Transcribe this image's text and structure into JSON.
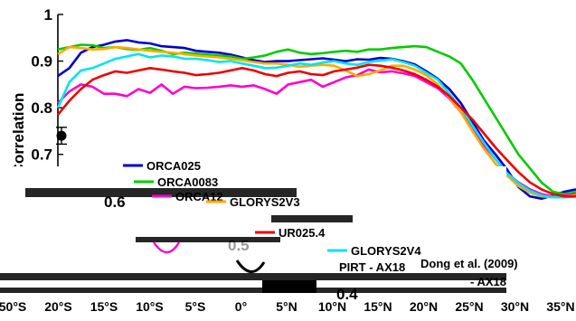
{
  "chart_data": {
    "type": "line",
    "ylabel": "Correlation",
    "ylim": [
      0.62,
      1.0
    ],
    "yticks": [
      {
        "value": 1.0,
        "label": "1"
      },
      {
        "value": 0.9,
        "label": "0.9"
      },
      {
        "value": 0.8,
        "label": "0.8"
      },
      {
        "value": 0.7,
        "label": "0.7"
      }
    ],
    "extra_tick_labels": [
      "0.6",
      "0.5",
      "0.4"
    ],
    "xtick_labels": [
      "50°S",
      "20°S",
      "15°S",
      "10°S",
      "5°S",
      "0°",
      "5°N",
      "10°N",
      "15°N",
      "20°N",
      "25°N",
      "30°N",
      "35°N"
    ],
    "x": [
      -56.0,
      -53.6,
      -51.2,
      -48.8,
      -46.4,
      -44.0,
      -41.6,
      -39.2,
      -36.8,
      -34.4,
      -32.0,
      -29.6,
      -27.2,
      -24.8,
      -22.4,
      -20.0,
      -17.6,
      -15.2,
      -12.8,
      -10.4,
      -8.0,
      -5.6,
      -3.2,
      -0.8,
      1.6,
      4.0,
      6.4,
      8.8,
      11.2,
      13.6,
      16.0,
      18.4,
      20.8,
      23.2,
      25.6,
      28.0,
      30.4,
      32.8,
      35.2,
      37.6,
      40.0,
      42.4,
      44.8,
      47.2,
      49.6,
      52.0
    ],
    "series": [
      {
        "name": "ORCA025",
        "color": "#0000cc",
        "values": [
          0.868,
          0.885,
          0.918,
          0.93,
          0.935,
          0.942,
          0.945,
          0.94,
          0.938,
          0.932,
          0.93,
          0.928,
          0.922,
          0.92,
          0.918,
          0.914,
          0.908,
          0.902,
          0.898,
          0.9,
          0.9,
          0.902,
          0.904,
          0.906,
          0.903,
          0.9,
          0.904,
          0.903,
          0.907,
          0.905,
          0.9,
          0.893,
          0.878,
          0.862,
          0.84,
          0.81,
          0.77,
          0.73,
          0.7,
          0.668,
          0.63,
          0.61,
          0.605,
          0.612,
          0.62,
          0.625
        ]
      },
      {
        "name": "ORCA0083",
        "color": "#00cc00",
        "values": [
          0.925,
          0.93,
          0.935,
          0.934,
          0.928,
          0.93,
          0.926,
          0.924,
          0.928,
          0.922,
          0.915,
          0.918,
          0.916,
          0.914,
          0.912,
          0.91,
          0.905,
          0.908,
          0.912,
          0.92,
          0.925,
          0.918,
          0.915,
          0.917,
          0.92,
          0.922,
          0.92,
          0.925,
          0.925,
          0.928,
          0.93,
          0.932,
          0.93,
          0.92,
          0.91,
          0.895,
          0.86,
          0.82,
          0.78,
          0.74,
          0.7,
          0.67,
          0.64,
          0.62,
          0.615,
          0.62
        ]
      },
      {
        "name": "ORCA12",
        "color": "#ff00cc",
        "values": [
          0.81,
          0.835,
          0.85,
          0.845,
          0.83,
          0.83,
          0.825,
          0.84,
          0.832,
          0.85,
          0.83,
          0.845,
          0.842,
          0.843,
          0.845,
          0.848,
          0.845,
          0.848,
          0.84,
          0.83,
          0.85,
          0.855,
          0.86,
          0.845,
          0.855,
          0.865,
          0.87,
          0.882,
          0.876,
          0.878,
          0.874,
          0.868,
          0.855,
          0.842,
          0.82,
          0.79,
          0.76,
          0.72,
          0.69,
          0.66,
          0.64,
          0.625,
          0.615,
          0.61,
          0.612,
          0.615
        ]
      },
      {
        "name": "GLORYS2V3",
        "color": "#ffaa00",
        "values": [
          0.915,
          0.93,
          0.928,
          0.925,
          0.926,
          0.93,
          0.928,
          0.925,
          0.922,
          0.92,
          0.918,
          0.915,
          0.912,
          0.91,
          0.908,
          0.905,
          0.902,
          0.898,
          0.895,
          0.895,
          0.892,
          0.888,
          0.89,
          0.892,
          0.89,
          0.88,
          0.868,
          0.872,
          0.88,
          0.89,
          0.89,
          0.882,
          0.87,
          0.85,
          0.822,
          0.79,
          0.75,
          0.712,
          0.68,
          0.655,
          0.632,
          0.618,
          0.61,
          0.608,
          0.61,
          0.612
        ]
      },
      {
        "name": "GLORYS2V4",
        "color": "#00e5ee",
        "values": [
          0.8,
          0.855,
          0.88,
          0.885,
          0.895,
          0.905,
          0.91,
          0.915,
          0.908,
          0.912,
          0.91,
          0.905,
          0.905,
          0.902,
          0.898,
          0.9,
          0.895,
          0.89,
          0.885,
          0.886,
          0.89,
          0.895,
          0.892,
          0.897,
          0.9,
          0.895,
          0.892,
          0.898,
          0.901,
          0.904,
          0.898,
          0.89,
          0.875,
          0.86,
          0.83,
          0.8,
          0.762,
          0.725,
          0.69,
          0.66,
          0.638,
          0.622,
          0.612,
          0.608,
          0.608,
          0.61
        ]
      },
      {
        "name": "UR025.4",
        "color": "#ee0000",
        "values": [
          0.785,
          0.815,
          0.84,
          0.86,
          0.87,
          0.878,
          0.875,
          0.88,
          0.885,
          0.882,
          0.878,
          0.875,
          0.87,
          0.872,
          0.875,
          0.88,
          0.885,
          0.88,
          0.872,
          0.868,
          0.875,
          0.878,
          0.872,
          0.87,
          0.878,
          0.882,
          0.886,
          0.892,
          0.89,
          0.886,
          0.88,
          0.872,
          0.86,
          0.845,
          0.825,
          0.8,
          0.775,
          0.745,
          0.715,
          0.688,
          0.662,
          0.64,
          0.625,
          0.615,
          0.61,
          0.61
        ]
      }
    ],
    "legend_position": "lower-left",
    "annotations": [
      "Dong et al. (2009)",
      "PIRT - AX18",
      "- AX18"
    ],
    "reference_marker": {
      "x": -56.0,
      "y": 0.74,
      "error": 0.018
    },
    "grid": false
  }
}
